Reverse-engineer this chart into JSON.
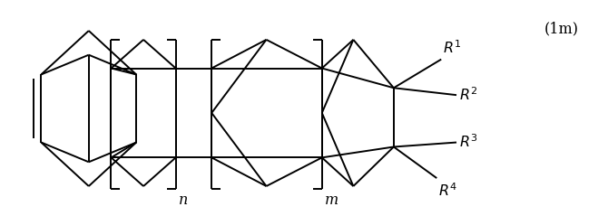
{
  "bg_color": "#ffffff",
  "line_color": "#000000",
  "line_width": 1.4,
  "fig_width": 6.7,
  "fig_height": 2.39,
  "dpi": 100,
  "label_1m": "(1m)",
  "label_n": "n",
  "label_m": "m"
}
